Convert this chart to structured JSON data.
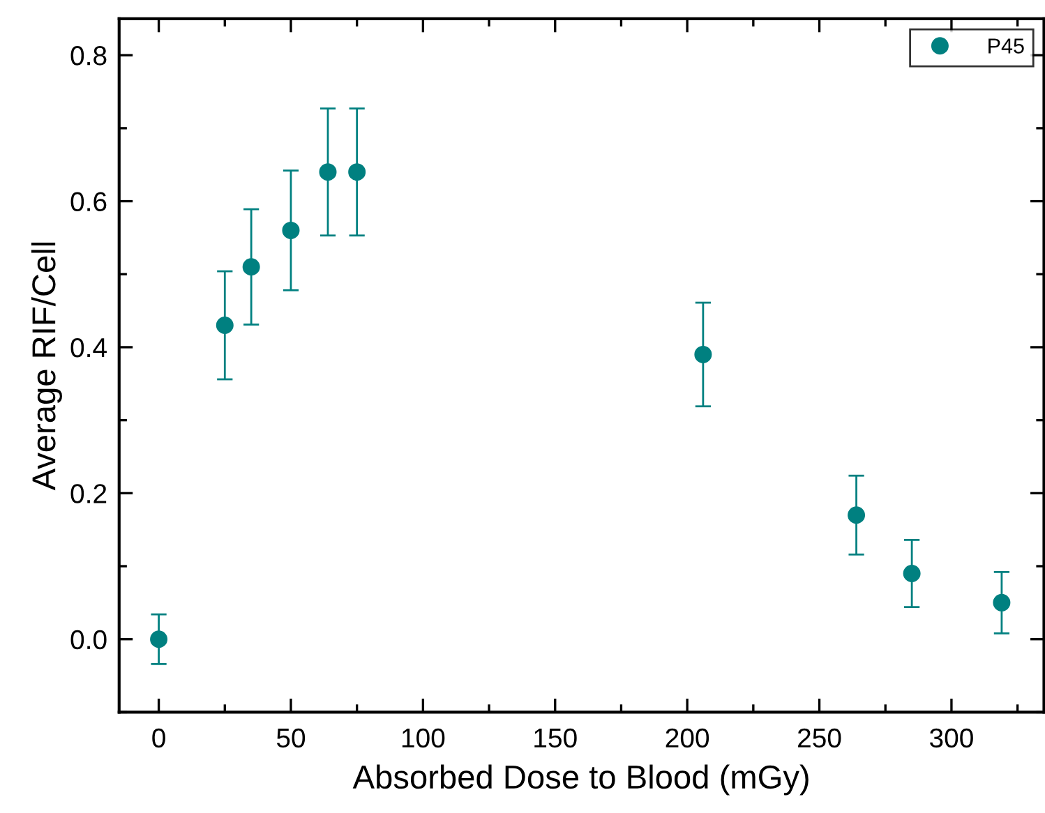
{
  "chart_data": {
    "type": "scatter",
    "xlabel": "Absorbed Dose to Blood (mGy)",
    "ylabel": "Average RIF/Cell",
    "x": [
      0,
      25,
      35,
      50,
      64,
      75,
      206,
      264,
      285,
      319
    ],
    "series": [
      {
        "name": "P45",
        "color": "#008080",
        "values": [
          0,
          0.43,
          0.51,
          0.56,
          0.64,
          0.64,
          0.39,
          0.17,
          0.09,
          0.05
        ],
        "errors": [
          0.034,
          0.074,
          0.079,
          0.082,
          0.087,
          0.087,
          0.071,
          0.054,
          0.046,
          0.042
        ]
      }
    ],
    "xlim": [
      -15,
      335
    ],
    "ylim": [
      -0.1,
      0.85
    ],
    "xticks": [
      0,
      50,
      100,
      150,
      200,
      250,
      300
    ],
    "yticks": [
      {
        "value": 0,
        "label": "0.0"
      },
      {
        "value": 0.2,
        "label": "0.2"
      },
      {
        "value": 0.4,
        "label": "0.4"
      },
      {
        "value": 0.6,
        "label": "0.6"
      },
      {
        "value": 0.8,
        "label": "0.8"
      }
    ],
    "marker": "circle",
    "legend": "top right",
    "grid": false
  }
}
